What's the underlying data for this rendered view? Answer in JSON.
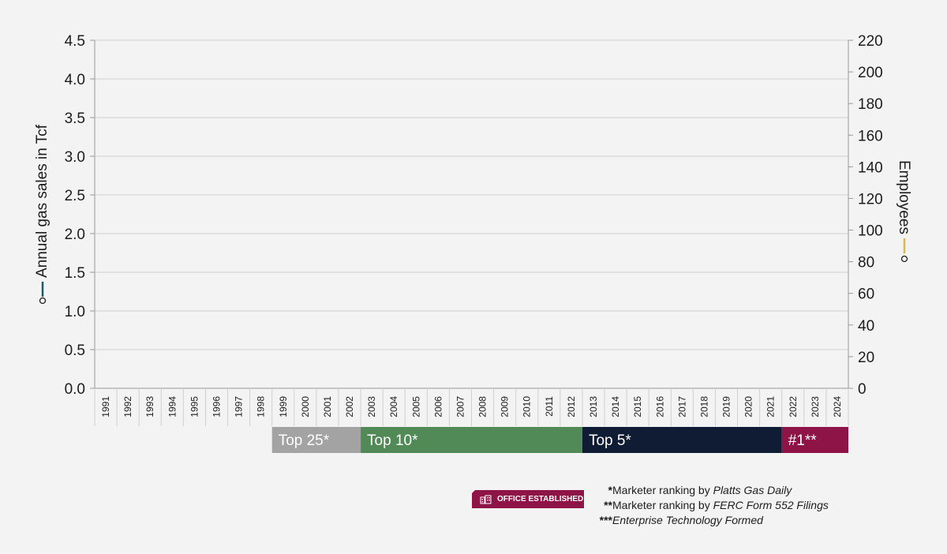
{
  "chart_data": {
    "type": "line",
    "y_left": {
      "label": "Annual gas sales in Tcf",
      "range": [
        0,
        4.5
      ],
      "ticks": [
        "0.0",
        "0.5",
        "1.0",
        "1.5",
        "2.0",
        "2.5",
        "3.0",
        "3.5",
        "4.0",
        "4.5"
      ],
      "series_color": "#1e5b66"
    },
    "y_right": {
      "label": "Employees",
      "range": [
        0,
        220
      ],
      "ticks": [
        "0",
        "20",
        "40",
        "60",
        "80",
        "100",
        "120",
        "140",
        "160",
        "180",
        "200",
        "220"
      ],
      "series_color": "#e2b44a"
    },
    "x": [
      "1991",
      "1992",
      "1993",
      "1994",
      "1995",
      "1996",
      "1997",
      "1998",
      "1999",
      "2000",
      "2001",
      "2002",
      "2003",
      "2004",
      "2005",
      "2006",
      "2007",
      "2008",
      "2009",
      "2010",
      "2011",
      "2012",
      "2013",
      "2014",
      "2015",
      "2016",
      "2017",
      "2018",
      "2019",
      "2020",
      "2021",
      "2022",
      "2023",
      "2024"
    ],
    "grid": true,
    "rank_bands": [
      {
        "label": "Top 25*",
        "start": "1999",
        "end": "2002",
        "color": "#a3a3a3"
      },
      {
        "label": "Top 10*",
        "start": "2003",
        "end": "2012",
        "color": "#528a57"
      },
      {
        "label": "Top 5*",
        "start": "2013",
        "end": "2021",
        "color": "#0f1c33"
      },
      {
        "label": "#1**",
        "start": "2022",
        "end": "2024",
        "color": "#8e1448"
      }
    ]
  },
  "legend": {
    "badge_label": "OFFICE ESTABLISHED",
    "badge_color": "#8e1448",
    "badge_icon": "building-icon",
    "notes": [
      {
        "mark": "*",
        "text": "Marketer ranking by ",
        "source": "Platts Gas Daily"
      },
      {
        "mark": "**",
        "text": "Marketer ranking by ",
        "source": "FERC Form 552 Filings"
      },
      {
        "mark": "***",
        "text": "",
        "source": "Enterprise Technology Formed"
      }
    ]
  }
}
